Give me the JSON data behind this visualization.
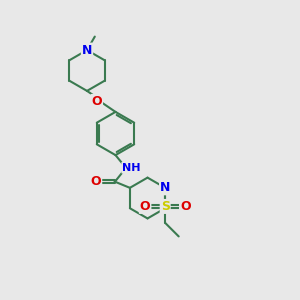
{
  "bg_color": "#e8e8e8",
  "bond_color": "#3a7a50",
  "bond_width": 1.5,
  "atom_colors": {
    "N": "#0000ee",
    "O": "#dd0000",
    "S": "#cccc00",
    "C": "#3a7a50"
  },
  "font_size": 8.0,
  "fig_size": [
    3.0,
    3.0
  ],
  "dpi": 100,
  "xlim": [
    0,
    10
  ],
  "ylim": [
    0,
    10
  ]
}
